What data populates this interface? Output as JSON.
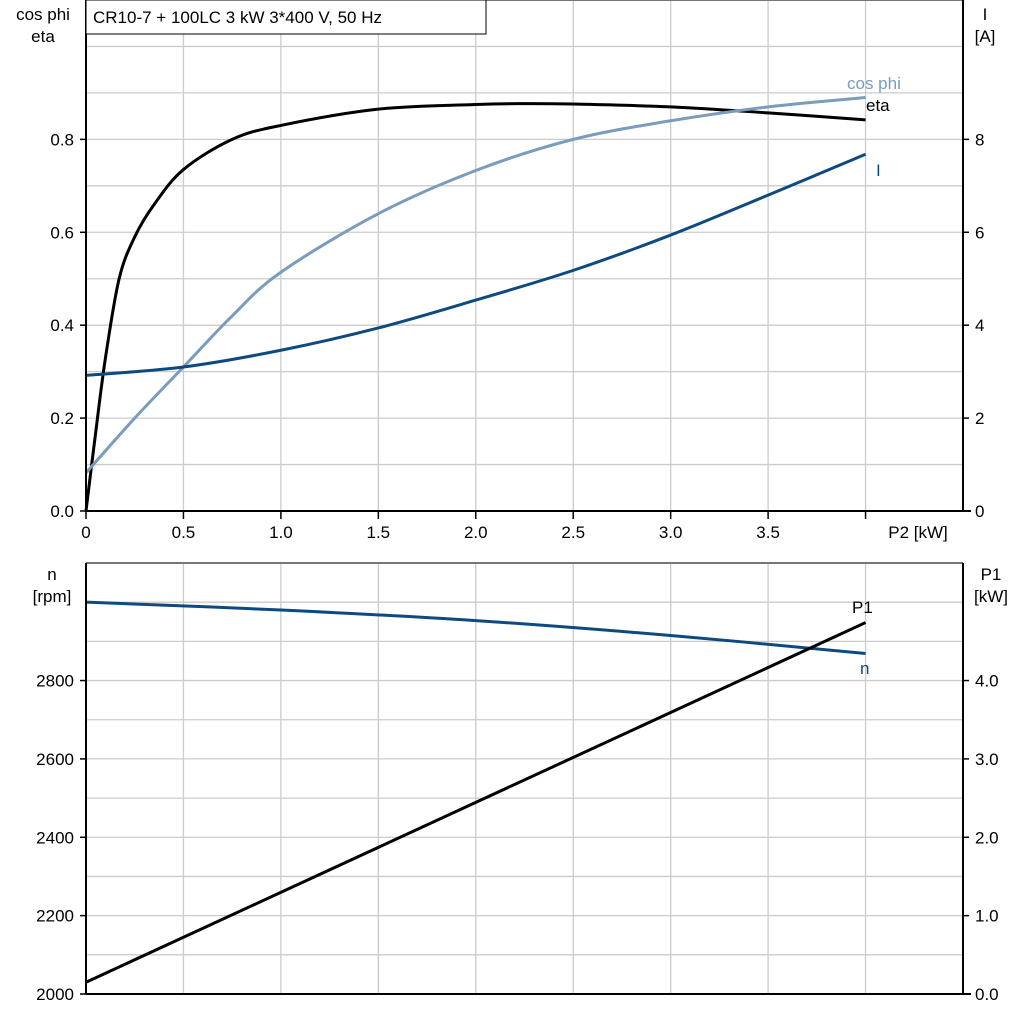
{
  "title": "CR10-7 + 100LC   3 kW   3*400 V, 50 Hz",
  "colors": {
    "eta": "#000000",
    "cos_phi": "#7a9cbd",
    "I": "#0e4a80",
    "n": "#0e4a80",
    "P1": "#000000",
    "grid": "#cccccc"
  },
  "chart_data": [
    {
      "type": "line",
      "xlabel": "P2 [kW]",
      "x_ticks": [
        "0",
        "0.5",
        "1.0",
        "1.5",
        "2.0",
        "2.5",
        "3.0",
        "3.5"
      ],
      "xlim": [
        0,
        4.5
      ],
      "ylabel_left": [
        "cos phi",
        "eta"
      ],
      "ylim_left": [
        0,
        1.1
      ],
      "y_ticks_left": [
        "0.0",
        "0.2",
        "0.4",
        "0.6",
        "0.8"
      ],
      "ylabel_right": [
        "I",
        "[A]"
      ],
      "ylim_right": [
        0,
        11
      ],
      "y_ticks_right": [
        "0",
        "2",
        "4",
        "6",
        "8"
      ],
      "grid": true,
      "series": [
        {
          "name": "eta",
          "axis": "left",
          "x": [
            0,
            0.05,
            0.1,
            0.17,
            0.25,
            0.35,
            0.5,
            0.75,
            1.0,
            1.5,
            2.0,
            2.25,
            2.5,
            3.0,
            3.5,
            4.0
          ],
          "y": [
            0,
            0.17,
            0.33,
            0.5,
            0.59,
            0.66,
            0.735,
            0.8,
            0.83,
            0.865,
            0.875,
            0.877,
            0.876,
            0.87,
            0.857,
            0.842
          ]
        },
        {
          "name": "cos phi",
          "axis": "left",
          "x": [
            0,
            0.25,
            0.5,
            0.75,
            1.0,
            1.5,
            2.0,
            2.5,
            3.0,
            3.5,
            4.0
          ],
          "y": [
            0.082,
            0.2,
            0.31,
            0.42,
            0.514,
            0.64,
            0.733,
            0.8,
            0.84,
            0.87,
            0.89
          ]
        },
        {
          "name": "I",
          "axis": "right",
          "x": [
            0,
            0.5,
            1.0,
            1.5,
            2.0,
            2.5,
            3.0,
            3.5,
            4.0
          ],
          "y": [
            2.92,
            3.1,
            3.46,
            3.94,
            4.54,
            5.18,
            5.94,
            6.8,
            7.68
          ]
        }
      ]
    },
    {
      "type": "line",
      "xlim": [
        0,
        4.5
      ],
      "ylabel_left": [
        "n",
        "[rpm]"
      ],
      "ylim_left": [
        2000,
        3100
      ],
      "y_ticks_left": [
        "2000",
        "2200",
        "2400",
        "2600",
        "2800"
      ],
      "ylabel_right": [
        "P1",
        "[kW]"
      ],
      "ylim_right": [
        0,
        5.5
      ],
      "y_ticks_right": [
        "0.0",
        "1.0",
        "2.0",
        "3.0",
        "4.0"
      ],
      "grid": true,
      "series": [
        {
          "name": "n",
          "axis": "left",
          "x": [
            0,
            1.0,
            2.0,
            3.0,
            4.0
          ],
          "y": [
            3000,
            2980,
            2953,
            2915,
            2869
          ]
        },
        {
          "name": "P1",
          "axis": "right",
          "x": [
            0,
            4.0
          ],
          "y": [
            0.15,
            4.74
          ]
        }
      ]
    }
  ]
}
